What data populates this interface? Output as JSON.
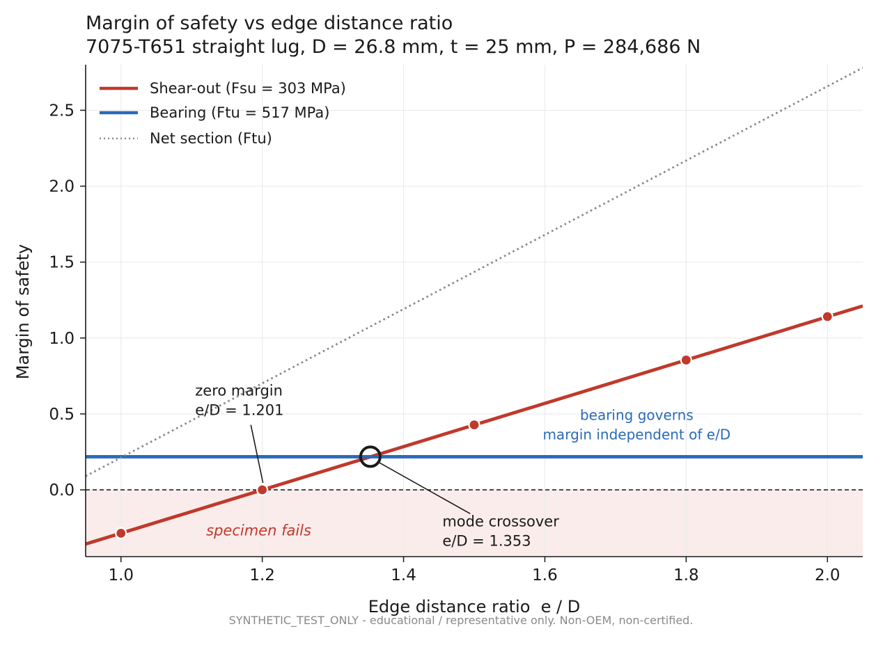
{
  "chart_data": {
    "type": "line",
    "title": "Margin of safety vs edge distance ratio",
    "subtitle": "7075-T651 straight lug, D = 26.8 mm, t = 25 mm, P = 284,686 N",
    "xlabel": "Edge distance ratio  e / D",
    "ylabel": "Margin of safety",
    "xlim": [
      0.95,
      2.05
    ],
    "ylim": [
      -0.44,
      2.8
    ],
    "xticks": [
      1.0,
      1.2,
      1.4,
      1.6,
      1.8,
      2.0
    ],
    "xtick_labels": [
      "1.0",
      "1.2",
      "1.4",
      "1.6",
      "1.8",
      "2.0"
    ],
    "yticks": [
      0.0,
      0.5,
      1.0,
      1.5,
      2.0,
      2.5
    ],
    "ytick_labels": [
      "0.0",
      "0.5",
      "1.0",
      "1.5",
      "2.0",
      "2.5"
    ],
    "grid": true,
    "legend_position": "top-left",
    "series": [
      {
        "name": "Shear-out (Fsu = 303 MPa)",
        "color": "#c0392b",
        "style": "solid",
        "x": [
          0.95,
          2.05
        ],
        "y": [
          -0.357,
          1.211
        ],
        "markers": {
          "x": [
            1.0,
            1.2,
            1.5,
            1.8,
            2.0
          ],
          "y": [
            -0.286,
            0.0,
            0.428,
            0.855,
            1.141
          ]
        }
      },
      {
        "name": "Bearing (Ftu = 517 MPa)",
        "color": "#2a6ab8",
        "style": "solid",
        "x": [
          0.95,
          2.05
        ],
        "y": [
          0.218,
          0.218
        ]
      },
      {
        "name": "Net section (Ftu)",
        "color": "#888888",
        "style": "dotted",
        "x": [
          0.95,
          2.05
        ],
        "y": [
          0.09,
          2.78
        ]
      }
    ],
    "zero_line": {
      "y": 0.0,
      "color": "#333333"
    },
    "fail_region": {
      "y_from": -0.44,
      "y_to": 0.0,
      "color": "#f9eceb"
    },
    "annotations": {
      "zero_margin": {
        "lines": [
          "zero margin",
          "e/D = 1.201"
        ],
        "point": [
          1.201,
          0.0
        ],
        "text_at": [
          1.105,
          0.62
        ]
      },
      "crossover": {
        "lines": [
          "mode crossover",
          "e/D = 1.353"
        ],
        "point": [
          1.353,
          0.218
        ],
        "text_at": [
          1.455,
          -0.24
        ]
      },
      "bearing_note": {
        "lines": [
          "bearing governs",
          "margin independent of e/D"
        ],
        "color": "#2a6ab8",
        "text_at": [
          1.73,
          0.46
        ]
      },
      "fails_note": {
        "text": "specimen fails",
        "color": "#c0392b",
        "text_at": [
          1.195,
          -0.3
        ]
      }
    },
    "footer": "SYNTHETIC_TEST_ONLY - educational / representative only. Non-OEM, non-certified."
  }
}
